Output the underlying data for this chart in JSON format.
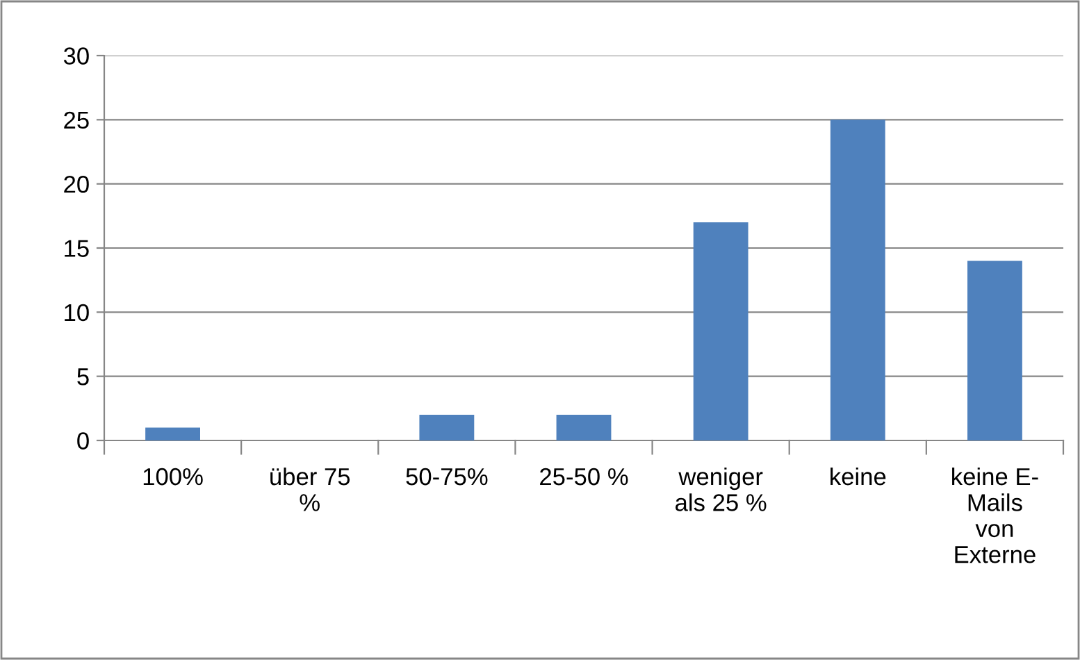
{
  "chart_data": {
    "type": "bar",
    "categories": [
      "100%",
      "über 75 %",
      "50-75%",
      "25-50 %",
      "weniger als 25 %",
      "keine",
      "keine E-Mails von Externe"
    ],
    "values": [
      1,
      0,
      2,
      2,
      17,
      25,
      14
    ],
    "color": "#4f81bd",
    "ylim": [
      0,
      30
    ],
    "yticks": [
      0,
      5,
      10,
      15,
      20,
      25,
      30
    ],
    "grid": "y",
    "legend": false
  }
}
